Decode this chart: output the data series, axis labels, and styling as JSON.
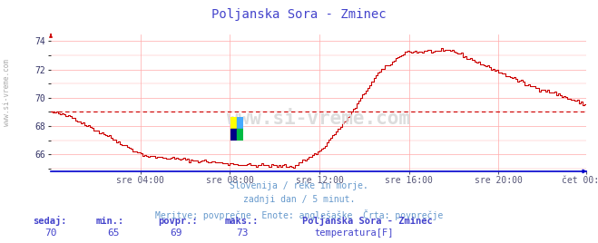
{
  "title": "Poljanska Sora - Zminec",
  "title_color": "#4444cc",
  "bg_color": "#ffffff",
  "plot_bg_color": "#ffffff",
  "x_tick_labels": [
    "sre 04:00",
    "sre 08:00",
    "sre 12:00",
    "sre 16:00",
    "sre 20:00",
    "čet 00:00"
  ],
  "x_tick_positions": [
    48,
    96,
    144,
    192,
    240,
    287
  ],
  "ylim": [
    64.8,
    74.5
  ],
  "yticks": [
    66,
    68,
    70,
    72,
    74
  ],
  "grid_color": "#ffaaaa",
  "axis_color": "#0000cc",
  "line_color": "#cc0000",
  "avg_value": 69.0,
  "sedaj": 70,
  "min_val": 65,
  "povpr_val": 69,
  "maks_val": 73,
  "label_color": "#4444cc",
  "station_label": "Poljanska Sora - Zminec",
  "series_label": "temperatura[F]",
  "footer_lines": [
    "Slovenija / reke in morje.",
    "zadnji dan / 5 minut.",
    "Meritve: povprečne  Enote: anglešaške  Črta: povprečje"
  ],
  "footer_color": "#6699cc",
  "watermark": "www.si-vreme.com",
  "left_label": "www.si-vreme.com",
  "n_points": 288
}
